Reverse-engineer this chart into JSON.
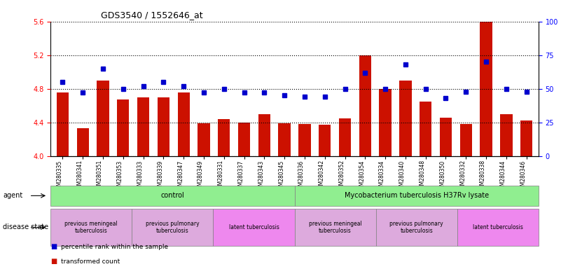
{
  "title": "GDS3540 / 1552646_at",
  "samples": [
    "GSM280335",
    "GSM280341",
    "GSM280351",
    "GSM280353",
    "GSM280333",
    "GSM280339",
    "GSM280347",
    "GSM280349",
    "GSM280331",
    "GSM280337",
    "GSM280343",
    "GSM280345",
    "GSM280336",
    "GSM280342",
    "GSM280352",
    "GSM280354",
    "GSM280334",
    "GSM280340",
    "GSM280348",
    "GSM280350",
    "GSM280332",
    "GSM280338",
    "GSM280344",
    "GSM280346"
  ],
  "bar_values": [
    4.76,
    4.33,
    4.9,
    4.67,
    4.7,
    4.7,
    4.76,
    4.39,
    4.44,
    4.4,
    4.5,
    4.39,
    4.38,
    4.37,
    4.45,
    5.2,
    4.8,
    4.9,
    4.65,
    4.46,
    4.38,
    5.78,
    4.5,
    4.42
  ],
  "percentile_values": [
    55,
    47,
    65,
    50,
    52,
    55,
    52,
    47,
    50,
    47,
    47,
    45,
    44,
    44,
    50,
    62,
    50,
    68,
    50,
    43,
    48,
    70,
    50,
    48
  ],
  "bar_color": "#cc1100",
  "dot_color": "#0000cc",
  "ylim_left": [
    4.0,
    5.6
  ],
  "ylim_right": [
    0,
    100
  ],
  "yticks_left": [
    4.0,
    4.4,
    4.8,
    5.2,
    5.6
  ],
  "yticks_right": [
    0,
    25,
    50,
    75,
    100
  ],
  "agent_groups": [
    {
      "label": "control",
      "start": 0,
      "end": 11,
      "color": "#90ee90"
    },
    {
      "label": "Mycobacterium tuberculosis H37Rv lysate",
      "start": 12,
      "end": 23,
      "color": "#90ee90"
    }
  ],
  "disease_groups": [
    {
      "label": "previous meningeal\ntuberculosis",
      "start": 0,
      "end": 3,
      "color": "#ddaadd"
    },
    {
      "label": "previous pulmonary\ntuberculosis",
      "start": 4,
      "end": 7,
      "color": "#ddaadd"
    },
    {
      "label": "latent tuberculosis",
      "start": 8,
      "end": 11,
      "color": "#ee88ee"
    },
    {
      "label": "previous meningeal\ntuberculosis",
      "start": 12,
      "end": 15,
      "color": "#ddaadd"
    },
    {
      "label": "previous pulmonary\ntuberculosis",
      "start": 16,
      "end": 19,
      "color": "#ddaadd"
    },
    {
      "label": "latent tuberculosis",
      "start": 20,
      "end": 23,
      "color": "#ee88ee"
    }
  ],
  "agent_label": "agent",
  "disease_label": "disease state",
  "legend_bar": "transformed count",
  "legend_dot": "percentile rank within the sample"
}
